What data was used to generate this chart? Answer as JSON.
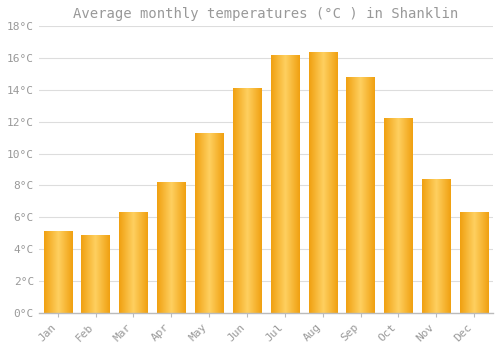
{
  "title": "Average monthly temperatures (°C ) in Shanklin",
  "months": [
    "Jan",
    "Feb",
    "Mar",
    "Apr",
    "May",
    "Jun",
    "Jul",
    "Aug",
    "Sep",
    "Oct",
    "Nov",
    "Dec"
  ],
  "values": [
    5.1,
    4.9,
    6.3,
    8.2,
    11.3,
    14.1,
    16.2,
    16.4,
    14.8,
    12.2,
    8.4,
    6.3
  ],
  "bar_color_center": "#FFD060",
  "bar_color_edge": "#F0A010",
  "background_color": "#FFFFFF",
  "grid_color": "#DDDDDD",
  "text_color": "#999999",
  "ylim": [
    0,
    18
  ],
  "ytick_step": 2,
  "title_fontsize": 10,
  "tick_fontsize": 8,
  "bar_width": 0.75
}
